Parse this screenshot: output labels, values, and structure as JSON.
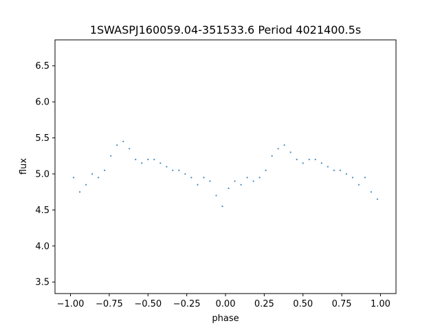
{
  "chart_data": {
    "type": "scatter",
    "title": "1SWASPJ160059.04-351533.6 Period 4021400.5s",
    "xlabel": "phase",
    "ylabel": "flux",
    "xlim": [
      -1.1,
      1.1
    ],
    "ylim": [
      3.34,
      6.86
    ],
    "xticks": [
      -1.0,
      -0.75,
      -0.5,
      -0.25,
      0.0,
      0.25,
      0.5,
      0.75,
      1.0
    ],
    "xtick_labels": [
      "−1.00",
      "−0.75",
      "−0.50",
      "−0.25",
      "0.00",
      "0.25",
      "0.50",
      "0.75",
      "1.00"
    ],
    "yticks": [
      3.5,
      4.0,
      4.5,
      5.0,
      5.5,
      6.0,
      6.5
    ],
    "ytick_labels": [
      "3.5",
      "4.0",
      "4.5",
      "5.0",
      "5.5",
      "6.0",
      "6.5"
    ],
    "grid": false,
    "point_color": "#1f77b4",
    "series": [
      {
        "x": [
          -0.98,
          -0.94,
          -0.9,
          -0.86,
          -0.82,
          -0.78,
          -0.74,
          -0.7,
          -0.66,
          -0.62,
          -0.58,
          -0.54,
          -0.5,
          -0.46,
          -0.42,
          -0.38,
          -0.34,
          -0.3,
          -0.26,
          -0.22,
          -0.18,
          -0.14,
          -0.1,
          -0.06,
          -0.02,
          0.02,
          0.06,
          0.1,
          0.14,
          0.18,
          0.22,
          0.26,
          0.3,
          0.34,
          0.38,
          0.42,
          0.46,
          0.5,
          0.54,
          0.58,
          0.62,
          0.66,
          0.7,
          0.74,
          0.78,
          0.82,
          0.86,
          0.9,
          0.94,
          0.98
        ],
        "y": [
          4.95,
          4.75,
          4.85,
          5.0,
          4.95,
          5.05,
          5.25,
          5.4,
          5.45,
          5.35,
          5.2,
          5.15,
          5.2,
          5.2,
          5.15,
          5.1,
          5.05,
          5.05,
          5.0,
          4.95,
          4.85,
          4.95,
          4.9,
          4.7,
          4.55,
          4.8,
          4.9,
          4.85,
          4.95,
          4.9,
          4.95,
          5.05,
          5.25,
          5.35,
          5.4,
          5.3,
          5.2,
          5.15,
          5.2,
          5.2,
          5.15,
          5.1,
          5.05,
          5.05,
          5.0,
          4.95,
          4.85,
          4.95,
          4.75,
          4.65
        ]
      }
    ]
  }
}
